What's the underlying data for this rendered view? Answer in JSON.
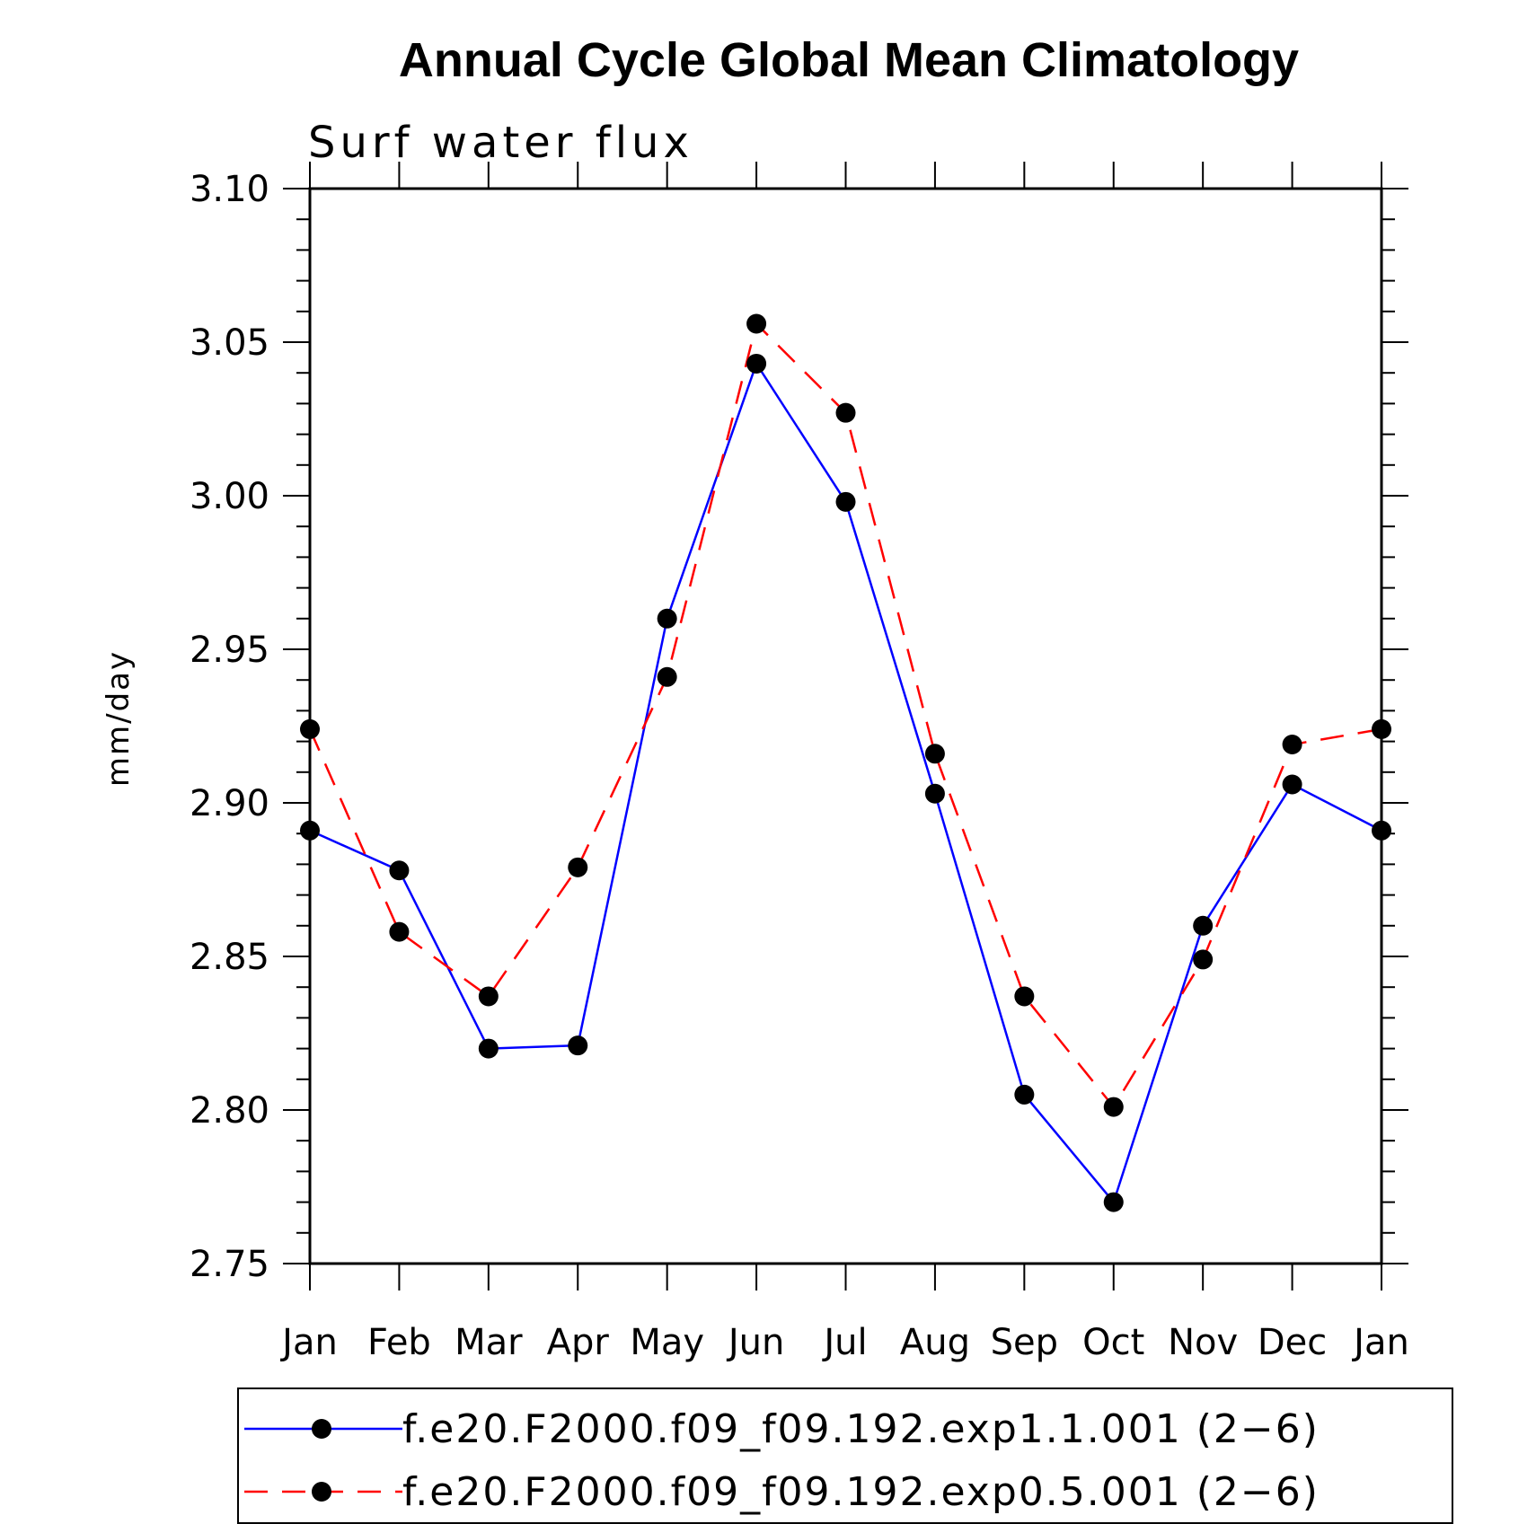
{
  "chart_data": {
    "type": "line",
    "title": "Annual Cycle Global Mean Climatology",
    "subtitle": "Surf water flux",
    "xlabel": "",
    "ylabel": "mm/day",
    "categories": [
      "Jan",
      "Feb",
      "Mar",
      "Apr",
      "May",
      "Jun",
      "Jul",
      "Aug",
      "Sep",
      "Oct",
      "Nov",
      "Dec",
      "Jan"
    ],
    "ylim": [
      2.75,
      3.1
    ],
    "yticks": [
      2.75,
      2.8,
      2.85,
      2.9,
      2.95,
      3.0,
      3.05,
      3.1
    ],
    "ytick_labels": [
      "2.75",
      "2.80",
      "2.85",
      "2.90",
      "2.95",
      "3.00",
      "3.05",
      "3.10"
    ],
    "legend_position": "bottom",
    "series": [
      {
        "name": "f.e20.F2000.f09_f09.192.exp1.1.001 (2-6)",
        "legend_label": "f.e20.F2000.f09_f09.192.exp1.1.001 (2−6)",
        "color": "#0000ff",
        "dash": "solid",
        "values": [
          2.891,
          2.878,
          2.82,
          2.821,
          2.96,
          3.043,
          2.998,
          2.903,
          2.805,
          2.77,
          2.86,
          2.906,
          2.891
        ]
      },
      {
        "name": "f.e20.F2000.f09_f09.192.exp0.5.001 (2-6)",
        "legend_label": "f.e20.F2000.f09_f09.192.exp0.5.001 (2−6)",
        "color": "#ff0000",
        "dash": "dashed",
        "values": [
          2.924,
          2.858,
          2.837,
          2.879,
          2.941,
          3.056,
          3.027,
          2.916,
          2.837,
          2.801,
          2.849,
          2.919,
          2.924
        ]
      }
    ],
    "marker_color": "#000000"
  }
}
